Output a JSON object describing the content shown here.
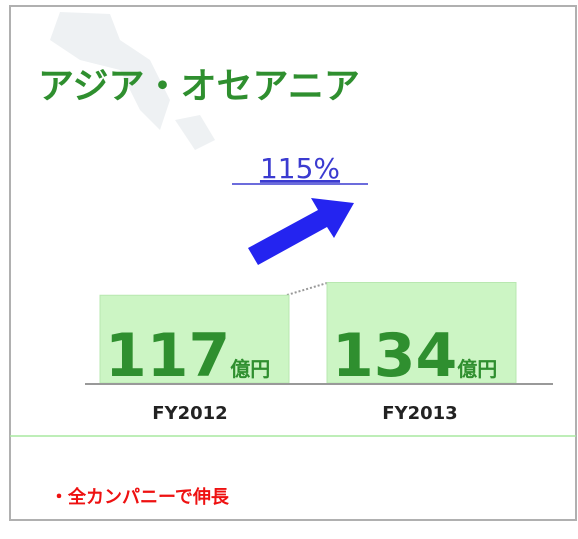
{
  "chart_data": {
    "type": "bar",
    "title": "アジア・オセアニア",
    "categories": [
      "FY2012",
      "FY2013"
    ],
    "values": [
      117,
      134
    ],
    "unit": "億円",
    "color": "#ccf5c4",
    "growth_label": "115%",
    "note": "・全カンパニーで伸長"
  }
}
